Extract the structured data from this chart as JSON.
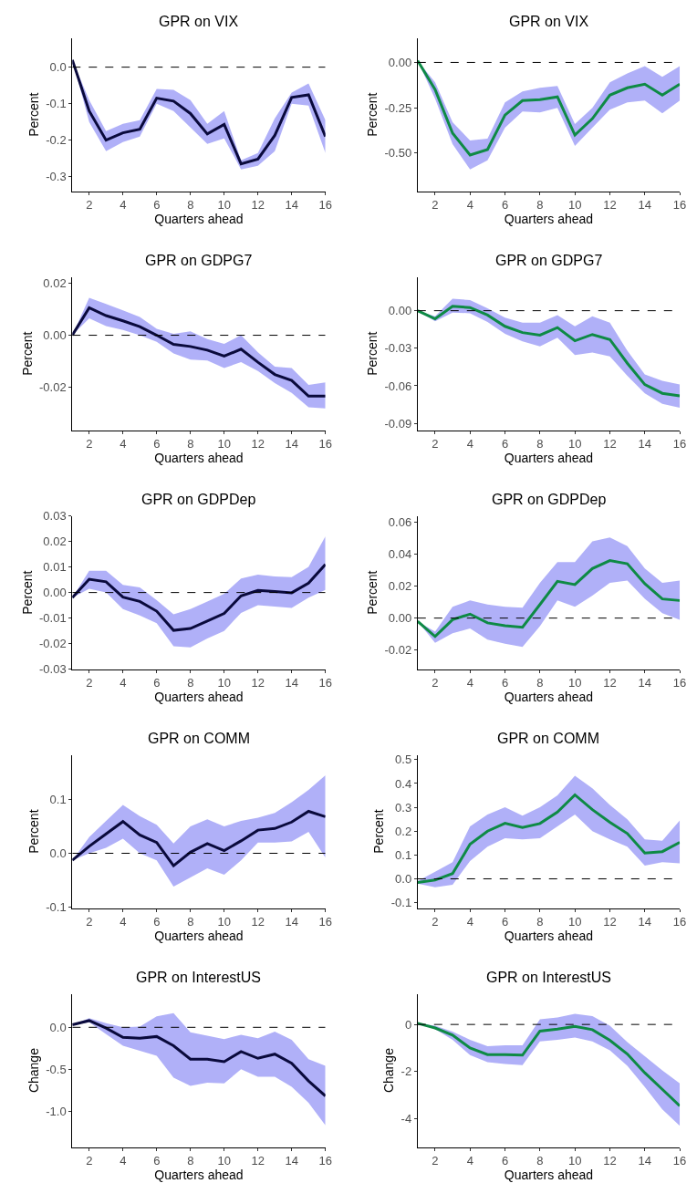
{
  "chart_data": [
    {
      "type": "line",
      "title": "GPR on VIX",
      "xlabel": "Quarters ahead",
      "ylabel": "Percent",
      "x": [
        1,
        2,
        3,
        4,
        5,
        6,
        7,
        8,
        9,
        10,
        11,
        12,
        13,
        14,
        15,
        16
      ],
      "xlim": [
        1,
        16
      ],
      "xticks": [
        2,
        4,
        6,
        8,
        10,
        12,
        14,
        16
      ],
      "ylim": [
        -0.34,
        0.08
      ],
      "yticks": [
        {
          "value": 0,
          "label": "0.0"
        },
        -0.1,
        -0.2,
        -0.3
      ],
      "grid": false,
      "marker": "none",
      "ref_lines": [
        {
          "axis": "y",
          "value": 0,
          "line_style": "dashed",
          "color": "#000000"
        }
      ],
      "series": [
        {
          "color": "#0a0a3c",
          "values": [
            0.02,
            -0.12,
            -0.2,
            -0.18,
            -0.17,
            -0.085,
            -0.093,
            -0.127,
            -0.183,
            -0.157,
            -0.265,
            -0.252,
            -0.187,
            -0.083,
            -0.076,
            -0.19
          ],
          "lower": [
            0.02,
            -0.15,
            -0.23,
            -0.205,
            -0.19,
            -0.1,
            -0.12,
            -0.165,
            -0.21,
            -0.195,
            -0.28,
            -0.27,
            -0.23,
            -0.1,
            -0.105,
            -0.235
          ],
          "upper": [
            0.02,
            -0.09,
            -0.175,
            -0.155,
            -0.145,
            -0.06,
            -0.062,
            -0.09,
            -0.155,
            -0.12,
            -0.255,
            -0.235,
            -0.14,
            -0.07,
            -0.045,
            -0.145
          ]
        }
      ]
    },
    {
      "type": "line",
      "title": "GPR on VIX",
      "xlabel": "Quarters ahead",
      "ylabel": "Percent",
      "x": [
        1,
        2,
        3,
        4,
        5,
        6,
        7,
        8,
        9,
        10,
        11,
        12,
        13,
        14,
        15,
        16
      ],
      "xlim": [
        1,
        16
      ],
      "xticks": [
        2,
        4,
        6,
        8,
        10,
        12,
        14,
        16
      ],
      "ylim": [
        -0.71,
        0.135
      ],
      "yticks": [
        {
          "value": 0,
          "label": "0.00"
        },
        -0.25,
        {
          "value": -0.5,
          "label": "-0.50"
        }
      ],
      "grid": false,
      "marker": "none",
      "ref_lines": [
        {
          "axis": "y",
          "value": 0,
          "line_style": "dashed",
          "color": "#000000"
        }
      ],
      "series": [
        {
          "color": "#0e8a45",
          "values": [
            0.01,
            -0.15,
            -0.39,
            -0.51,
            -0.48,
            -0.29,
            -0.21,
            -0.205,
            -0.19,
            -0.4,
            -0.31,
            -0.18,
            -0.14,
            -0.12,
            -0.18,
            -0.12
          ],
          "lower": [
            0.01,
            -0.2,
            -0.45,
            -0.59,
            -0.54,
            -0.36,
            -0.27,
            -0.275,
            -0.25,
            -0.46,
            -0.36,
            -0.26,
            -0.22,
            -0.21,
            -0.28,
            -0.21
          ],
          "upper": [
            0.01,
            -0.11,
            -0.33,
            -0.43,
            -0.42,
            -0.22,
            -0.16,
            -0.14,
            -0.13,
            -0.34,
            -0.25,
            -0.11,
            -0.06,
            -0.02,
            -0.08,
            -0.02
          ]
        }
      ]
    },
    {
      "type": "line",
      "title": "GPR on GDPG7",
      "xlabel": "Quarters ahead",
      "ylabel": "Percent",
      "x": [
        1,
        2,
        3,
        4,
        5,
        6,
        7,
        8,
        9,
        10,
        11,
        12,
        13,
        14,
        15,
        16
      ],
      "xlim": [
        1,
        16
      ],
      "xticks": [
        2,
        4,
        6,
        8,
        10,
        12,
        14,
        16
      ],
      "ylim": [
        -0.0363,
        0.0223
      ],
      "yticks": [
        0.02,
        {
          "value": 0,
          "label": "0.00"
        },
        -0.02
      ],
      "grid": false,
      "marker": "none",
      "ref_lines": [
        {
          "axis": "y",
          "value": 0,
          "line_style": "dashed",
          "color": "#000000"
        }
      ],
      "series": [
        {
          "color": "#0a0a3c",
          "values": [
            0,
            0.0105,
            0.0075,
            0.0055,
            0.0033,
            0,
            -0.0035,
            -0.0043,
            -0.0057,
            -0.008,
            -0.0053,
            -0.0103,
            -0.015,
            -0.0173,
            -0.0233,
            -0.0233
          ],
          "lower": [
            0,
            0.0065,
            0.0035,
            0.002,
            0,
            -0.0025,
            -0.007,
            -0.0093,
            -0.0097,
            -0.0125,
            -0.0103,
            -0.0137,
            -0.0183,
            -0.022,
            -0.0275,
            -0.028
          ],
          "upper": [
            0,
            0.0143,
            0.012,
            0.0095,
            0.007,
            0.0025,
            0.0005,
            0.0015,
            -0.0015,
            -0.0033,
            0,
            -0.0065,
            -0.012,
            -0.0125,
            -0.019,
            -0.018
          ]
        }
      ]
    },
    {
      "type": "line",
      "title": "GPR on GDPG7",
      "xlabel": "Quarters ahead",
      "ylabel": "Percent",
      "x": [
        1,
        2,
        3,
        4,
        5,
        6,
        7,
        8,
        9,
        10,
        11,
        12,
        13,
        14,
        15,
        16
      ],
      "xlim": [
        1,
        16
      ],
      "xticks": [
        2,
        4,
        6,
        8,
        10,
        12,
        14,
        16
      ],
      "ylim": [
        -0.0955,
        0.027
      ],
      "yticks": [
        {
          "value": 0,
          "label": "0.00"
        },
        -0.03,
        -0.06,
        -0.09
      ],
      "grid": false,
      "marker": "none",
      "ref_lines": [
        {
          "axis": "y",
          "value": 0,
          "line_style": "dashed",
          "color": "#000000"
        }
      ],
      "series": [
        {
          "color": "#0e8a45",
          "values": [
            0,
            -0.0065,
            0.0035,
            0.0025,
            -0.0035,
            -0.0125,
            -0.0175,
            -0.0195,
            -0.0135,
            -0.024,
            -0.019,
            -0.023,
            -0.042,
            -0.059,
            -0.066,
            -0.068
          ],
          "lower": [
            0,
            -0.0085,
            -0.0015,
            -0.002,
            -0.009,
            -0.0185,
            -0.0245,
            -0.0285,
            -0.0215,
            -0.0355,
            -0.0335,
            -0.0365,
            -0.052,
            -0.066,
            -0.0745,
            -0.0775
          ],
          "upper": [
            0,
            -0.0045,
            0.0095,
            0.0085,
            0.002,
            -0.0055,
            -0.0095,
            -0.0095,
            -0.0035,
            -0.0125,
            -0.0045,
            -0.0095,
            -0.032,
            -0.051,
            -0.056,
            -0.059
          ]
        }
      ]
    },
    {
      "type": "line",
      "title": "GPR on GDPDep",
      "xlabel": "Quarters ahead",
      "ylabel": "Percent",
      "x": [
        1,
        2,
        3,
        4,
        5,
        6,
        7,
        8,
        9,
        10,
        11,
        12,
        13,
        14,
        15,
        16
      ],
      "xlim": [
        1,
        16
      ],
      "xticks": [
        2,
        4,
        6,
        8,
        10,
        12,
        14,
        16
      ],
      "ylim": [
        -0.03,
        0.03
      ],
      "yticks": [
        0.03,
        0.02,
        0.01,
        {
          "value": 0,
          "label": "0.00"
        },
        -0.01,
        -0.02,
        -0.03
      ],
      "grid": false,
      "marker": "none",
      "ref_lines": [
        {
          "axis": "y",
          "value": 0,
          "line_style": "dashed",
          "color": "#000000"
        }
      ],
      "series": [
        {
          "color": "#0a0a3c",
          "values": [
            -0.002,
            0.0052,
            0.0042,
            -0.0018,
            -0.0035,
            -0.0073,
            -0.0148,
            -0.0141,
            -0.0112,
            -0.0082,
            -0.0013,
            0.0008,
            0.0004,
            -0.0001,
            0.0037,
            0.011
          ],
          "lower": [
            -0.002,
            0.0015,
            0,
            -0.0065,
            -0.009,
            -0.012,
            -0.021,
            -0.0215,
            -0.018,
            -0.015,
            -0.008,
            -0.005,
            -0.0055,
            -0.006,
            -0.002,
            0.001
          ],
          "upper": [
            -0.002,
            0.0085,
            0.0085,
            0.003,
            0.002,
            -0.003,
            -0.0085,
            -0.0065,
            -0.0035,
            -0.0005,
            0.0055,
            0.007,
            0.0063,
            0.006,
            0.01,
            0.022
          ]
        }
      ]
    },
    {
      "type": "line",
      "title": "GPR on GDPDep",
      "xlabel": "Quarters ahead",
      "ylabel": "Percent",
      "x": [
        1,
        2,
        3,
        4,
        5,
        6,
        7,
        8,
        9,
        10,
        11,
        12,
        13,
        14,
        15,
        16
      ],
      "xlim": [
        1,
        16
      ],
      "xticks": [
        2,
        4,
        6,
        8,
        10,
        12,
        14,
        16
      ],
      "ylim": [
        -0.032,
        0.064
      ],
      "yticks": [
        0.06,
        0.04,
        0.02,
        {
          "value": 0,
          "label": "0.00"
        },
        -0.02
      ],
      "grid": false,
      "marker": "none",
      "ref_lines": [
        {
          "axis": "y",
          "value": 0,
          "line_style": "dashed",
          "color": "#000000"
        }
      ],
      "series": [
        {
          "color": "#0e8a45",
          "values": [
            -0.002,
            -0.0115,
            -0.001,
            0.0025,
            -0.003,
            -0.0048,
            -0.0058,
            0.0085,
            0.023,
            0.021,
            0.031,
            0.036,
            0.034,
            0.0215,
            0.012,
            0.011
          ],
          "lower": [
            -0.002,
            -0.0155,
            -0.0095,
            -0.0065,
            -0.0135,
            -0.016,
            -0.018,
            -0.005,
            0.011,
            0.007,
            0.014,
            0.022,
            0.0235,
            0.012,
            0.003,
            -0.001
          ],
          "upper": [
            -0.002,
            -0.0085,
            0.007,
            0.011,
            0.0085,
            0.007,
            0.0065,
            0.022,
            0.035,
            0.035,
            0.048,
            0.0505,
            0.045,
            0.031,
            0.022,
            0.0235
          ]
        }
      ]
    },
    {
      "type": "line",
      "title": "GPR on COMM",
      "xlabel": "Quarters ahead",
      "ylabel": "Percent",
      "x": [
        1,
        2,
        3,
        4,
        5,
        6,
        7,
        8,
        9,
        10,
        11,
        12,
        13,
        14,
        15,
        16
      ],
      "xlim": [
        1,
        16
      ],
      "xticks": [
        2,
        4,
        6,
        8,
        10,
        12,
        14,
        16
      ],
      "ylim": [
        -0.102,
        0.183
      ],
      "yticks": [
        0.1,
        {
          "value": 0,
          "label": "0.0"
        },
        -0.1
      ],
      "grid": false,
      "marker": "none",
      "ref_lines": [
        {
          "axis": "y",
          "value": 0,
          "line_style": "dashed",
          "color": "#000000"
        }
      ],
      "series": [
        {
          "color": "#0a0a3c",
          "values": [
            -0.013,
            0.013,
            0.036,
            0.059,
            0.034,
            0.02,
            -0.023,
            0.002,
            0.018,
            0.005,
            0.023,
            0.043,
            0.046,
            0.058,
            0.078,
            0.068
          ],
          "lower": [
            -0.013,
            0,
            0.01,
            0.027,
            0,
            -0.013,
            -0.062,
            -0.045,
            -0.028,
            -0.04,
            -0.013,
            0.02,
            0.02,
            0.022,
            0.04,
            -0.008
          ],
          "upper": [
            -0.013,
            0.03,
            0.06,
            0.09,
            0.069,
            0.053,
            0.018,
            0.05,
            0.063,
            0.05,
            0.06,
            0.066,
            0.075,
            0.095,
            0.118,
            0.145
          ]
        }
      ]
    },
    {
      "type": "line",
      "title": "GPR on COMM",
      "xlabel": "Quarters ahead",
      "ylabel": "Percent",
      "x": [
        1,
        2,
        3,
        4,
        5,
        6,
        7,
        8,
        9,
        10,
        11,
        12,
        13,
        14,
        15,
        16
      ],
      "xlim": [
        1,
        16
      ],
      "xticks": [
        2,
        4,
        6,
        8,
        10,
        12,
        14,
        16
      ],
      "ylim": [
        -0.123,
        0.52
      ],
      "yticks": [
        0.5,
        0.4,
        0.3,
        0.2,
        0.1,
        {
          "value": 0,
          "label": "0.0"
        },
        -0.1
      ],
      "grid": false,
      "marker": "none",
      "ref_lines": [
        {
          "axis": "y",
          "value": 0,
          "line_style": "dashed",
          "color": "#000000"
        }
      ],
      "series": [
        {
          "color": "#0e8a45",
          "values": [
            -0.015,
            -0.005,
            0.022,
            0.145,
            0.2,
            0.233,
            0.215,
            0.232,
            0.28,
            0.352,
            0.29,
            0.237,
            0.19,
            0.108,
            0.114,
            0.153
          ],
          "lower": [
            -0.02,
            -0.035,
            -0.025,
            0.075,
            0.135,
            0.17,
            0.165,
            0.17,
            0.22,
            0.27,
            0.2,
            0.165,
            0.135,
            0.055,
            0.07,
            0.065
          ],
          "upper": [
            -0.01,
            0.03,
            0.07,
            0.22,
            0.27,
            0.3,
            0.265,
            0.3,
            0.35,
            0.432,
            0.38,
            0.31,
            0.25,
            0.165,
            0.16,
            0.245
          ]
        }
      ]
    },
    {
      "type": "line",
      "title": "GPR on InterestUS",
      "xlabel": "Quarters ahead",
      "ylabel": "Change",
      "x": [
        1,
        2,
        3,
        4,
        5,
        6,
        7,
        8,
        9,
        10,
        11,
        12,
        13,
        14,
        15,
        16
      ],
      "xlim": [
        1,
        16
      ],
      "xticks": [
        2,
        4,
        6,
        8,
        10,
        12,
        14,
        16
      ],
      "ylim": [
        -1.43,
        0.4
      ],
      "yticks": [
        {
          "value": 0,
          "label": "0.0"
        },
        -0.5,
        {
          "value": -1,
          "label": "-1.0"
        }
      ],
      "grid": false,
      "marker": "none",
      "ref_lines": [
        {
          "axis": "y",
          "value": 0,
          "line_style": "dashed",
          "color": "#000000"
        }
      ],
      "series": [
        {
          "color": "#0a0a3c",
          "values": [
            0.03,
            0.08,
            -0.01,
            -0.12,
            -0.13,
            -0.11,
            -0.22,
            -0.38,
            -0.38,
            -0.41,
            -0.29,
            -0.37,
            -0.32,
            -0.43,
            -0.64,
            -0.82
          ],
          "lower": [
            0.03,
            0.06,
            -0.08,
            -0.22,
            -0.28,
            -0.34,
            -0.6,
            -0.7,
            -0.66,
            -0.67,
            -0.5,
            -0.59,
            -0.59,
            -0.71,
            -0.9,
            -1.17
          ],
          "upper": [
            0.03,
            0.11,
            0.05,
            0,
            0.01,
            0.13,
            0.17,
            -0.06,
            -0.1,
            -0.14,
            -0.09,
            -0.13,
            -0.05,
            -0.15,
            -0.38,
            -0.46
          ]
        }
      ]
    },
    {
      "type": "line",
      "title": "GPR on InterestUS",
      "xlabel": "Quarters ahead",
      "ylabel": "Change",
      "x": [
        1,
        2,
        3,
        4,
        5,
        6,
        7,
        8,
        9,
        10,
        11,
        12,
        13,
        14,
        15,
        16
      ],
      "xlim": [
        1,
        16
      ],
      "xticks": [
        2,
        4,
        6,
        8,
        10,
        12,
        14,
        16
      ],
      "ylim": [
        -5.2,
        1.3
      ],
      "yticks": [
        0,
        -2,
        -4
      ],
      "grid": false,
      "marker": "none",
      "ref_lines": [
        {
          "axis": "y",
          "value": 0,
          "line_style": "dashed",
          "color": "#000000"
        }
      ],
      "series": [
        {
          "color": "#0e8a45",
          "values": [
            0.05,
            -0.15,
            -0.45,
            -1.0,
            -1.28,
            -1.28,
            -1.3,
            -0.28,
            -0.2,
            -0.08,
            -0.22,
            -0.67,
            -1.25,
            -2.05,
            -2.75,
            -3.45
          ],
          "lower": [
            0.05,
            -0.2,
            -0.65,
            -1.3,
            -1.6,
            -1.68,
            -1.72,
            -0.72,
            -0.65,
            -0.55,
            -0.72,
            -1.1,
            -1.75,
            -2.65,
            -3.6,
            -4.3
          ],
          "upper": [
            0.05,
            -0.05,
            -0.3,
            -0.65,
            -0.92,
            -0.88,
            -0.88,
            0.22,
            0.3,
            0.45,
            0.35,
            -0.05,
            -0.75,
            -1.35,
            -1.95,
            -2.5
          ]
        }
      ]
    }
  ]
}
